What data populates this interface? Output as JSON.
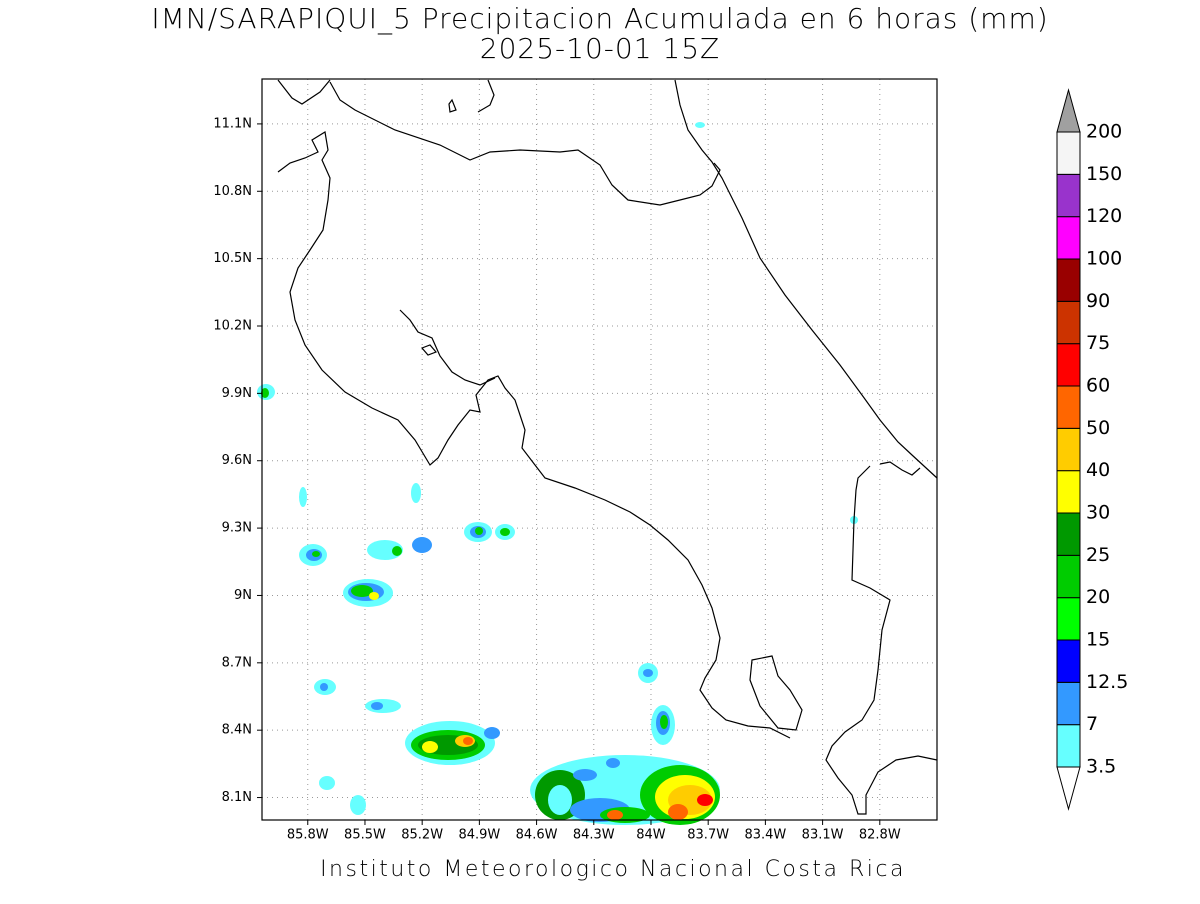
{
  "map": {
    "title": "IMN/SARAPIQUI_5 Precipitacion Acumulada en 6 horas (mm)",
    "subtitle": "2025-10-01 15Z",
    "footer": "Instituto Meteorologico Nacional Costa Rica",
    "lonlim": [
      -86.04,
      -82.5
    ],
    "latlim": [
      8.0,
      11.3
    ],
    "grid": true,
    "lat_ticks": [
      {
        "value": 8.1,
        "label": "8.1N"
      },
      {
        "value": 8.4,
        "label": "8.4N"
      },
      {
        "value": 8.7,
        "label": "8.7N"
      },
      {
        "value": 9.0,
        "label": "9N"
      },
      {
        "value": 9.3,
        "label": "9.3N"
      },
      {
        "value": 9.6,
        "label": "9.6N"
      },
      {
        "value": 9.9,
        "label": "9.9N"
      },
      {
        "value": 10.2,
        "label": "10.2N"
      },
      {
        "value": 10.5,
        "label": "10.5N"
      },
      {
        "value": 10.8,
        "label": "10.8N"
      },
      {
        "value": 11.1,
        "label": "11.1N"
      }
    ],
    "lon_ticks": [
      {
        "value": -85.8,
        "label": "85.8W"
      },
      {
        "value": -85.5,
        "label": "85.5W"
      },
      {
        "value": -85.2,
        "label": "85.2W"
      },
      {
        "value": -84.9,
        "label": "84.9W"
      },
      {
        "value": -84.6,
        "label": "84.6W"
      },
      {
        "value": -84.3,
        "label": "84.3W"
      },
      {
        "value": -84.0,
        "label": "84W"
      },
      {
        "value": -83.7,
        "label": "83.7W"
      },
      {
        "value": -83.4,
        "label": "83.4W"
      },
      {
        "value": -83.1,
        "label": "83.1W"
      },
      {
        "value": -82.8,
        "label": "82.8W"
      }
    ],
    "colorbar": {
      "levels": [
        3.5,
        7,
        12.5,
        15,
        20,
        25,
        30,
        40,
        50,
        60,
        75,
        90,
        100,
        120,
        150,
        200
      ],
      "colors": [
        "#66ffff",
        "#3399ff",
        "#0000ff",
        "#00ff00",
        "#00cc00",
        "#009900",
        "#ffff00",
        "#ffcc00",
        "#ff6600",
        "#ff0000",
        "#cc3300",
        "#990000",
        "#ff00ff",
        "#9933cc",
        "#f5f5f5"
      ],
      "over_color": "#a0a0a0",
      "under_color": "#ffffff"
    }
  }
}
